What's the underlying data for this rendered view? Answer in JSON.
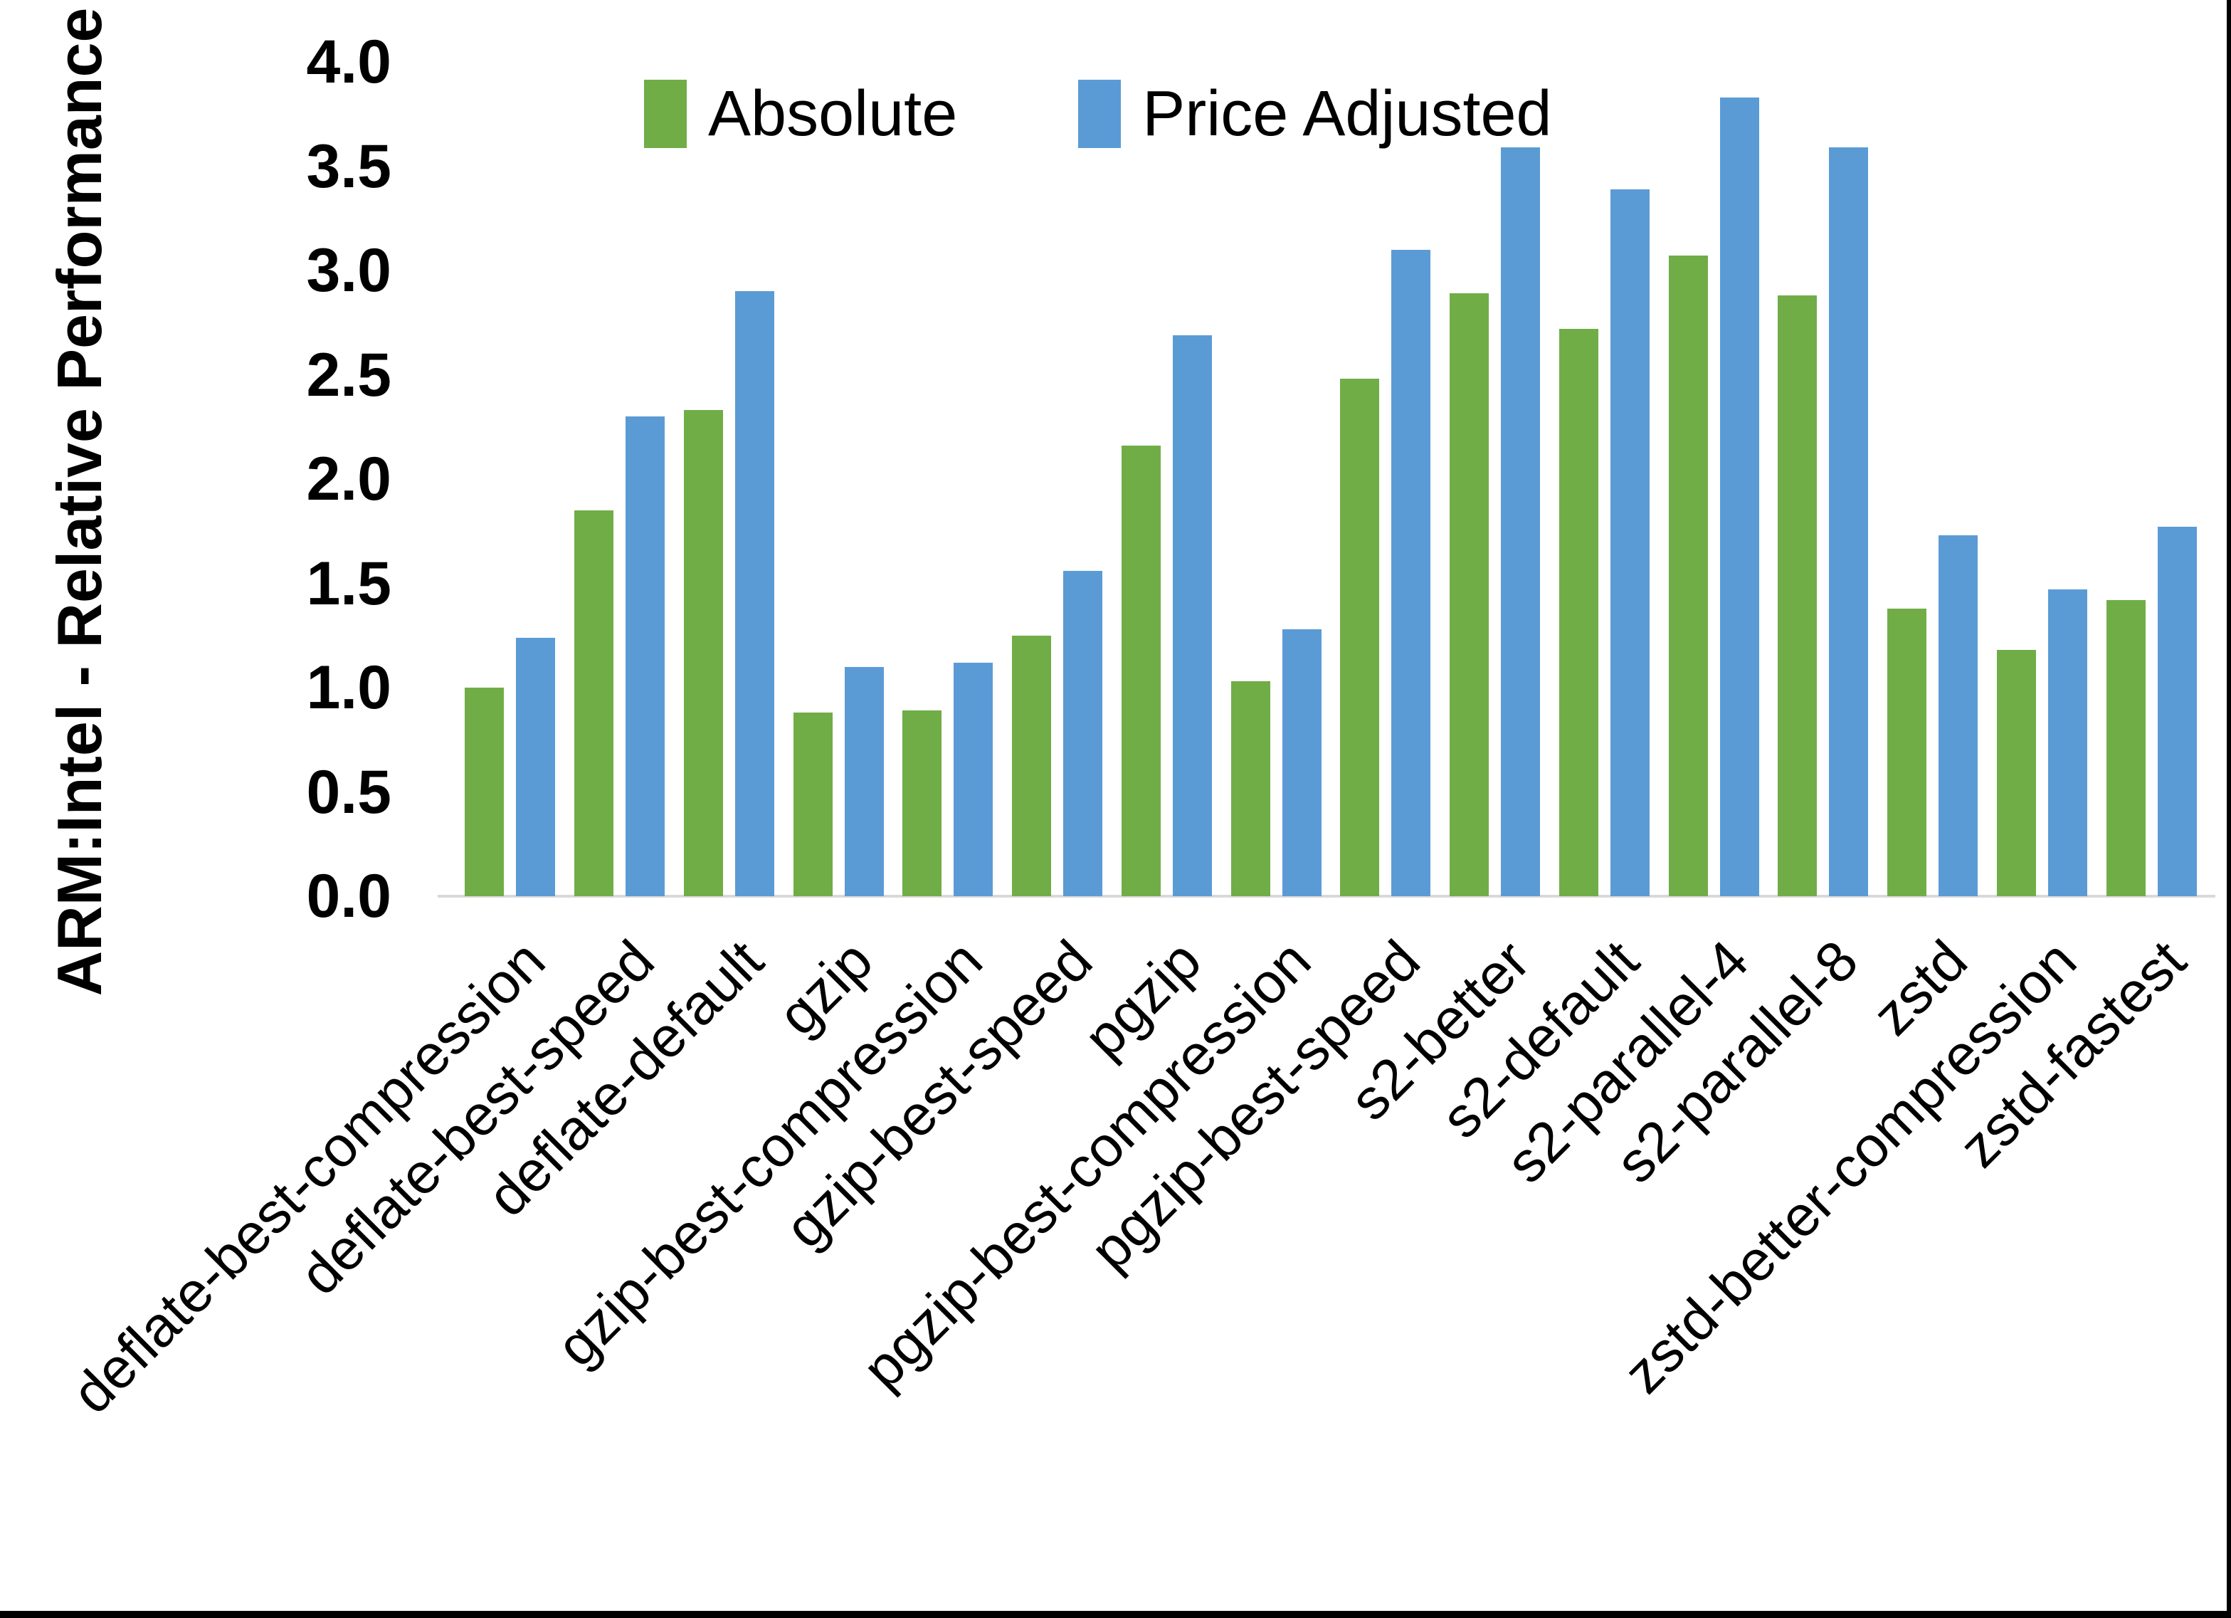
{
  "chart_data": {
    "type": "bar",
    "title": "",
    "ylabel": "ARM:Intel - Relative Performance",
    "xlabel": "",
    "ylim": [
      0.0,
      4.0
    ],
    "y_ticks": [
      "0.0",
      "0.5",
      "1.0",
      "1.5",
      "2.0",
      "2.5",
      "3.0",
      "3.5",
      "4.0"
    ],
    "grid": false,
    "legend_position": "top-center",
    "background_color": "#FFFFFF",
    "axis_line_color": "#D9D9D9",
    "frame_border_color": "#000000",
    "categories": [
      "deflate-best-compression",
      "deflate-best-speed",
      "deflate-default",
      "gzip",
      "gzip-best-compression",
      "gzip-best-speed",
      "pgzip",
      "pgzip-best-compression",
      "pgzip-best-speed",
      "s2-better",
      "s2-default",
      "s2-parallel-4",
      "s2-parallel-8",
      "zstd",
      "zstd-better-compression",
      "zstd-fastest"
    ],
    "series": [
      {
        "name": "Absolute",
        "color": "#70AD47",
        "values": [
          1.0,
          1.85,
          2.33,
          0.88,
          0.89,
          1.25,
          2.16,
          1.03,
          2.48,
          2.89,
          2.72,
          3.07,
          2.88,
          1.38,
          1.18,
          1.42
        ]
      },
      {
        "name": "Price Adjusted",
        "color": "#5B9BD5",
        "values": [
          1.24,
          2.3,
          2.9,
          1.1,
          1.12,
          1.56,
          2.69,
          1.28,
          3.1,
          3.59,
          3.39,
          3.83,
          3.59,
          1.73,
          1.47,
          1.77
        ]
      }
    ]
  }
}
